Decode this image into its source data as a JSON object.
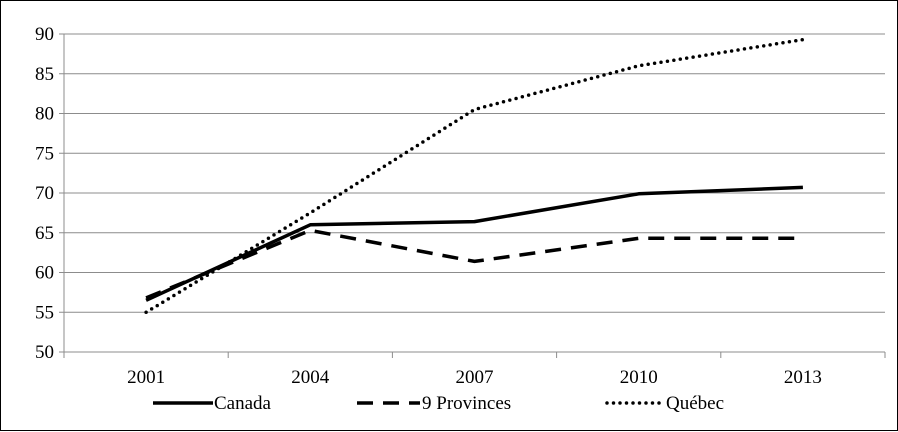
{
  "chart_data": {
    "type": "line",
    "title": "",
    "xlabel": "",
    "ylabel": "",
    "categories": [
      "2001",
      "2004",
      "2007",
      "2010",
      "2013"
    ],
    "ylim": [
      50,
      90
    ],
    "yticks": [
      50,
      55,
      60,
      65,
      70,
      75,
      80,
      85,
      90
    ],
    "grid": true,
    "legend_position": "bottom",
    "series": [
      {
        "name": "Canada",
        "style": "solid",
        "color": "#000000",
        "values": [
          56.5,
          66.0,
          66.4,
          69.9,
          70.7
        ]
      },
      {
        "name": "9 Provinces",
        "style": "dashed",
        "color": "#000000",
        "values": [
          56.8,
          65.3,
          61.4,
          64.3,
          64.3
        ]
      },
      {
        "name": "Québec",
        "style": "dotted",
        "color": "#000000",
        "values": [
          55.0,
          67.5,
          80.5,
          86.0,
          89.3
        ]
      }
    ]
  }
}
